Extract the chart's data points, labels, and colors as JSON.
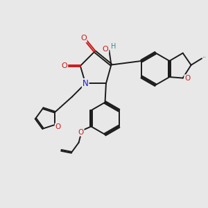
{
  "bg_color": "#e8e8e8",
  "bond_color": "#1a1a1a",
  "bond_width": 1.4,
  "N_color": "#1a1acc",
  "O_color": "#cc1a1a",
  "H_color": "#3a8888",
  "figsize": [
    3.0,
    3.0
  ],
  "dpi": 100,
  "xlim": [
    0,
    10
  ],
  "ylim": [
    0,
    10
  ]
}
